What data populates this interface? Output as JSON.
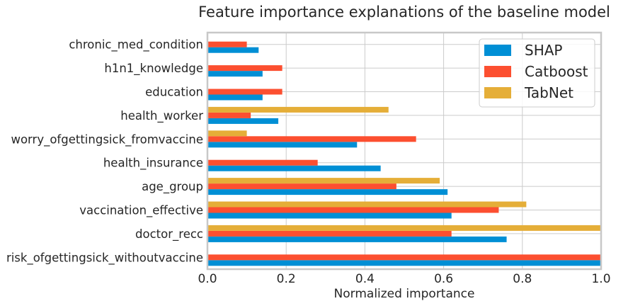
{
  "chart_data": {
    "type": "bar",
    "orientation": "horizontal",
    "title": "Feature importance explanations of the baseline model",
    "xlabel": "Normalized importance",
    "ylabel": "",
    "xlim": [
      0,
      1
    ],
    "xticks": [
      "0.0",
      "0.2",
      "0.4",
      "0.6",
      "0.8",
      "1.0"
    ],
    "grid": true,
    "legend_position": "top-right",
    "categories": [
      "chronic_med_condition",
      "h1n1_knowledge",
      "education",
      "health_worker",
      "worry_ofgettingsick_fromvaccine",
      "health_insurance",
      "age_group",
      "vaccination_effective",
      "doctor_recc",
      "risk_ofgettingsick_withoutvaccine"
    ],
    "series": [
      {
        "name": "SHAP",
        "color": "#008fd5",
        "values": [
          0.13,
          0.14,
          0.14,
          0.18,
          0.38,
          0.44,
          0.61,
          0.62,
          0.76,
          1.0
        ]
      },
      {
        "name": "Catboost",
        "color": "#fc4f30",
        "values": [
          0.1,
          0.19,
          0.19,
          0.11,
          0.53,
          0.28,
          0.48,
          0.74,
          0.62,
          1.0
        ]
      },
      {
        "name": "TabNet",
        "color": "#e5ae38",
        "values": [
          0.0,
          0.0,
          0.0,
          0.46,
          0.1,
          0.0,
          0.59,
          0.81,
          1.0,
          0.0
        ]
      }
    ]
  }
}
